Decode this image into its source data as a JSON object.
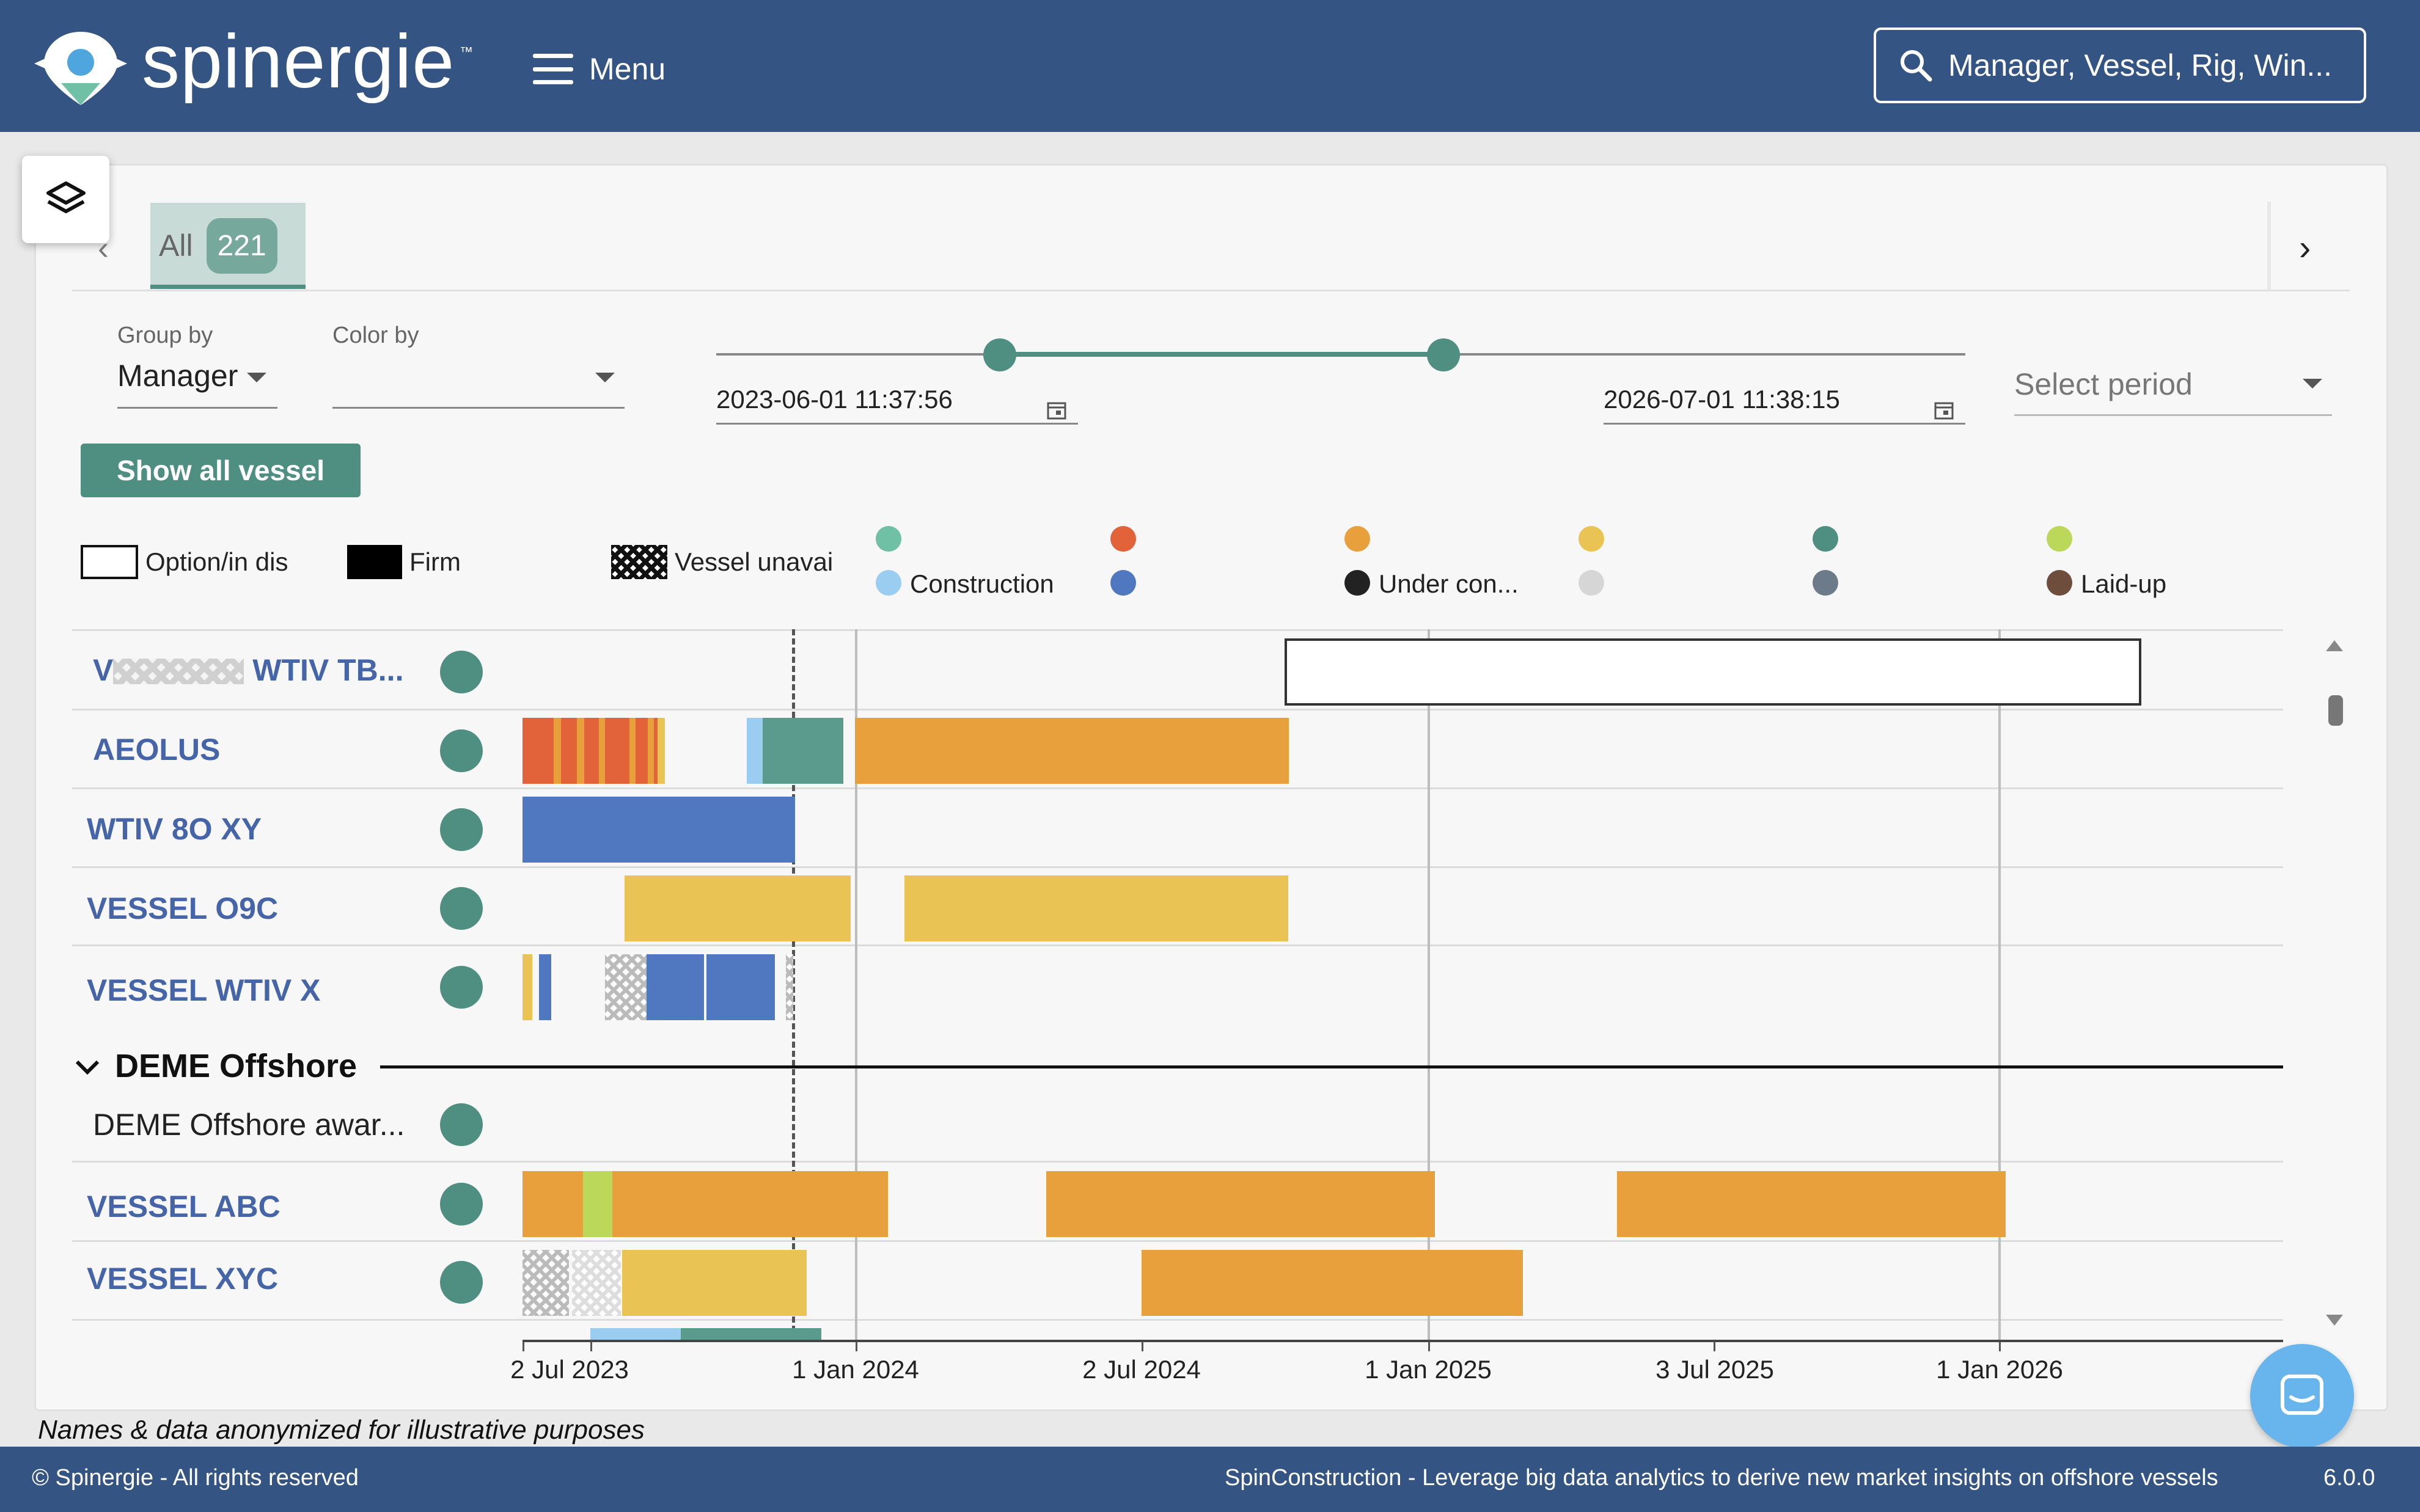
{
  "header": {
    "logo_text": "spinergie",
    "logo_tm": "™",
    "menu_label": "Menu",
    "search_placeholder": "Manager, Vessel, Rig, Win..."
  },
  "tabs": {
    "all_label": "All",
    "all_count": "221"
  },
  "controls": {
    "group_by_label": "Group by",
    "group_by_value": "Manager",
    "color_by_label": "Color by",
    "color_by_value": "",
    "date_start": "2023-06-01 11:37:56",
    "date_end": "2026-07-01 11:38:15",
    "select_period_placeholder": "Select period",
    "show_all_label": "Show all vessel"
  },
  "legend": {
    "option": "Option/in dis",
    "firm": "Firm",
    "unavailable": "Vessel unavai",
    "construction": "Construction",
    "under_construction": "Under con...",
    "laid_up": "Laid-up",
    "colors": {
      "teal_light": "#6fc0a4",
      "orange_red": "#e2623a",
      "orange": "#e8a03d",
      "yellow": "#e9c454",
      "teal_dark": "#4f8f82",
      "lime": "#bcd85a",
      "light_blue": "#9bcdf0",
      "blue": "#4f78c0",
      "black": "#222222",
      "grey_light": "#d6d6d6",
      "slate": "#6c7a8a",
      "brown": "#6f4d3d"
    }
  },
  "gantt": {
    "rows": [
      {
        "name": "V",
        "name_suffix": "WTIV TB..."
      },
      {
        "name": "AEOLUS"
      },
      {
        "name": "WTIV 8O XY"
      },
      {
        "name": "VESSEL O9C"
      },
      {
        "name": "VESSEL WTIV X"
      },
      {
        "name": "DEME Offshore awar..."
      },
      {
        "name": "VESSEL ABC"
      },
      {
        "name": "VESSEL XYC"
      }
    ],
    "group_header": "DEME Offshore",
    "axis_ticks": [
      "2 Jul 2023",
      "1 Jan 2024",
      "2 Jul 2024",
      "1 Jan 2025",
      "3 Jul 2025",
      "1 Jan 2026"
    ]
  },
  "note": "Names & data anonymized for illustrative purposes",
  "footer": {
    "copyright": "© Spinergie - All rights reserved",
    "tagline": "SpinConstruction - Leverage big data analytics to derive new market insights on offshore vessels",
    "version": "6.0.0"
  }
}
